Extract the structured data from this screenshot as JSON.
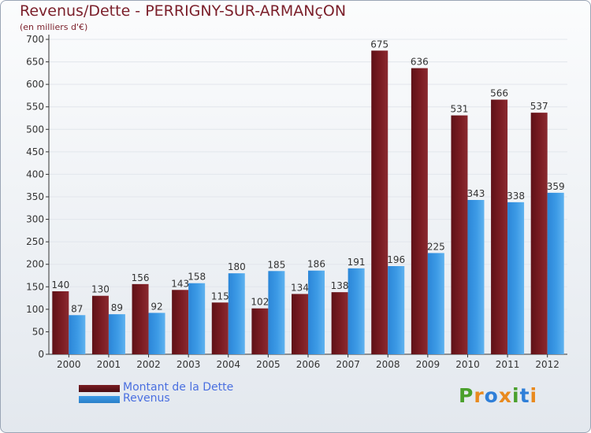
{
  "title": "Revenus/Dette - PERRIGNY-SUR-ARMANçON",
  "subtitle": "(en milliers d'€)",
  "colors": {
    "dette": "#7a1c22",
    "revenus": "#3d9be6",
    "axis": "#333333",
    "grid": "#e2e6ec"
  },
  "chart_data": {
    "type": "bar",
    "title": "Revenus/Dette - PERRIGNY-SUR-ARMANçON",
    "ylabel": "(en milliers d'€)",
    "ylim": [
      0,
      700
    ],
    "yticks": [
      0,
      50,
      100,
      150,
      200,
      250,
      300,
      350,
      400,
      450,
      500,
      550,
      600,
      650,
      700
    ],
    "categories": [
      "2000",
      "2001",
      "2002",
      "2003",
      "2004",
      "2005",
      "2006",
      "2007",
      "2008",
      "2009",
      "2010",
      "2011",
      "2012"
    ],
    "series": [
      {
        "name": "Montant de la Dette",
        "values": [
          140,
          130,
          156,
          143,
          115,
          102,
          134,
          138,
          675,
          636,
          531,
          566,
          537
        ]
      },
      {
        "name": "Revenus",
        "values": [
          87,
          89,
          92,
          158,
          180,
          185,
          186,
          191,
          196,
          225,
          343,
          338,
          359
        ]
      }
    ],
    "legend": "bottom-left"
  },
  "legend": {
    "dette_label": "Montant de la Dette",
    "revenus_label": "Revenus"
  },
  "logo": {
    "letters": [
      "P",
      "r",
      "o",
      "x",
      "i",
      "t",
      "i"
    ],
    "colors": [
      "#4aa02c",
      "#e98a1e",
      "#2f7fd8",
      "#e98a1e",
      "#4aa02c",
      "#2f7fd8",
      "#e98a1e"
    ]
  }
}
